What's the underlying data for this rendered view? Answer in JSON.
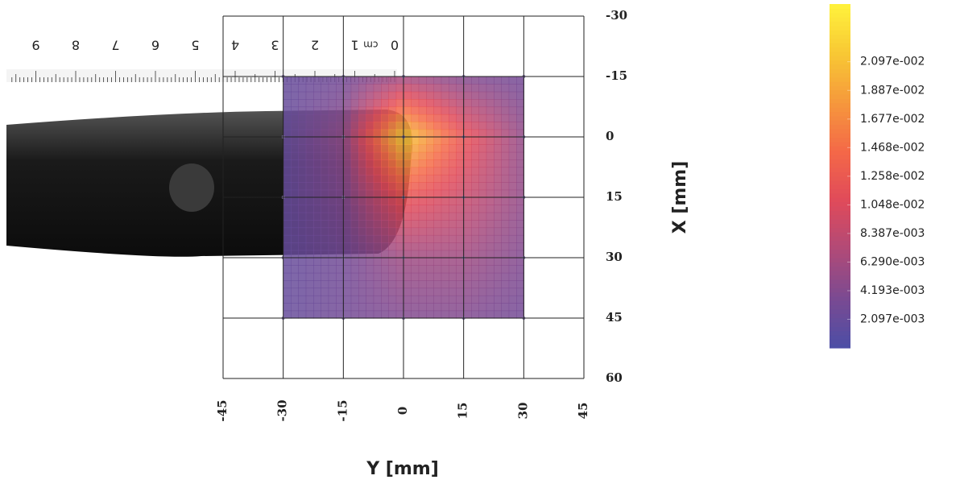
{
  "chart_data": {
    "type": "contour",
    "xlabel": "Y [mm]",
    "ylabel": "X [mm]",
    "xlim": [
      -45,
      45
    ],
    "xticks": [
      -45,
      -30,
      -15,
      0,
      15,
      30,
      45
    ],
    "ylim": [
      -30,
      60
    ],
    "yticks": [
      -30,
      -15,
      0,
      15,
      30,
      45,
      60
    ],
    "y_inverted": true,
    "grid": true,
    "x": [
      -30,
      -15,
      0,
      15,
      30
    ],
    "y": [
      -15,
      0,
      15,
      30,
      45
    ],
    "z": [
      [
        0.002,
        0.003,
        0.006,
        0.004,
        0.003
      ],
      [
        0.002,
        0.005,
        0.022,
        0.012,
        0.005
      ],
      [
        0.002,
        0.004,
        0.012,
        0.009,
        0.005
      ],
      [
        0.002,
        0.003,
        0.006,
        0.006,
        0.004
      ],
      [
        0.002,
        0.003,
        0.004,
        0.004,
        0.003
      ]
    ],
    "colormap": [
      "#4b4ea6",
      "#7a4a92",
      "#b04a78",
      "#e04a5a",
      "#f46848",
      "#f6983c",
      "#f8c834",
      "#fff23c"
    ],
    "colorbar_lim": [
      0,
      0.0252
    ],
    "colorbar_ticks": [
      {
        "value": 0.002097,
        "label": "2.097e-003"
      },
      {
        "value": 0.004193,
        "label": "4.193e-003"
      },
      {
        "value": 0.00629,
        "label": "6.290e-003"
      },
      {
        "value": 0.008387,
        "label": "8.387e-003"
      },
      {
        "value": 0.01048,
        "label": "1.048e-002"
      },
      {
        "value": 0.01258,
        "label": "1.258e-002"
      },
      {
        "value": 0.01468,
        "label": "1.468e-002"
      },
      {
        "value": 0.01677,
        "label": "1.677e-002"
      },
      {
        "value": 0.01887,
        "label": "1.887e-002"
      },
      {
        "value": 0.02097,
        "label": "2.097e-002"
      }
    ]
  },
  "ruler": {
    "labels": [
      "0",
      "1",
      "2",
      "3",
      "4",
      "5",
      "6",
      "7",
      "8",
      "9"
    ],
    "unit": "cm"
  }
}
